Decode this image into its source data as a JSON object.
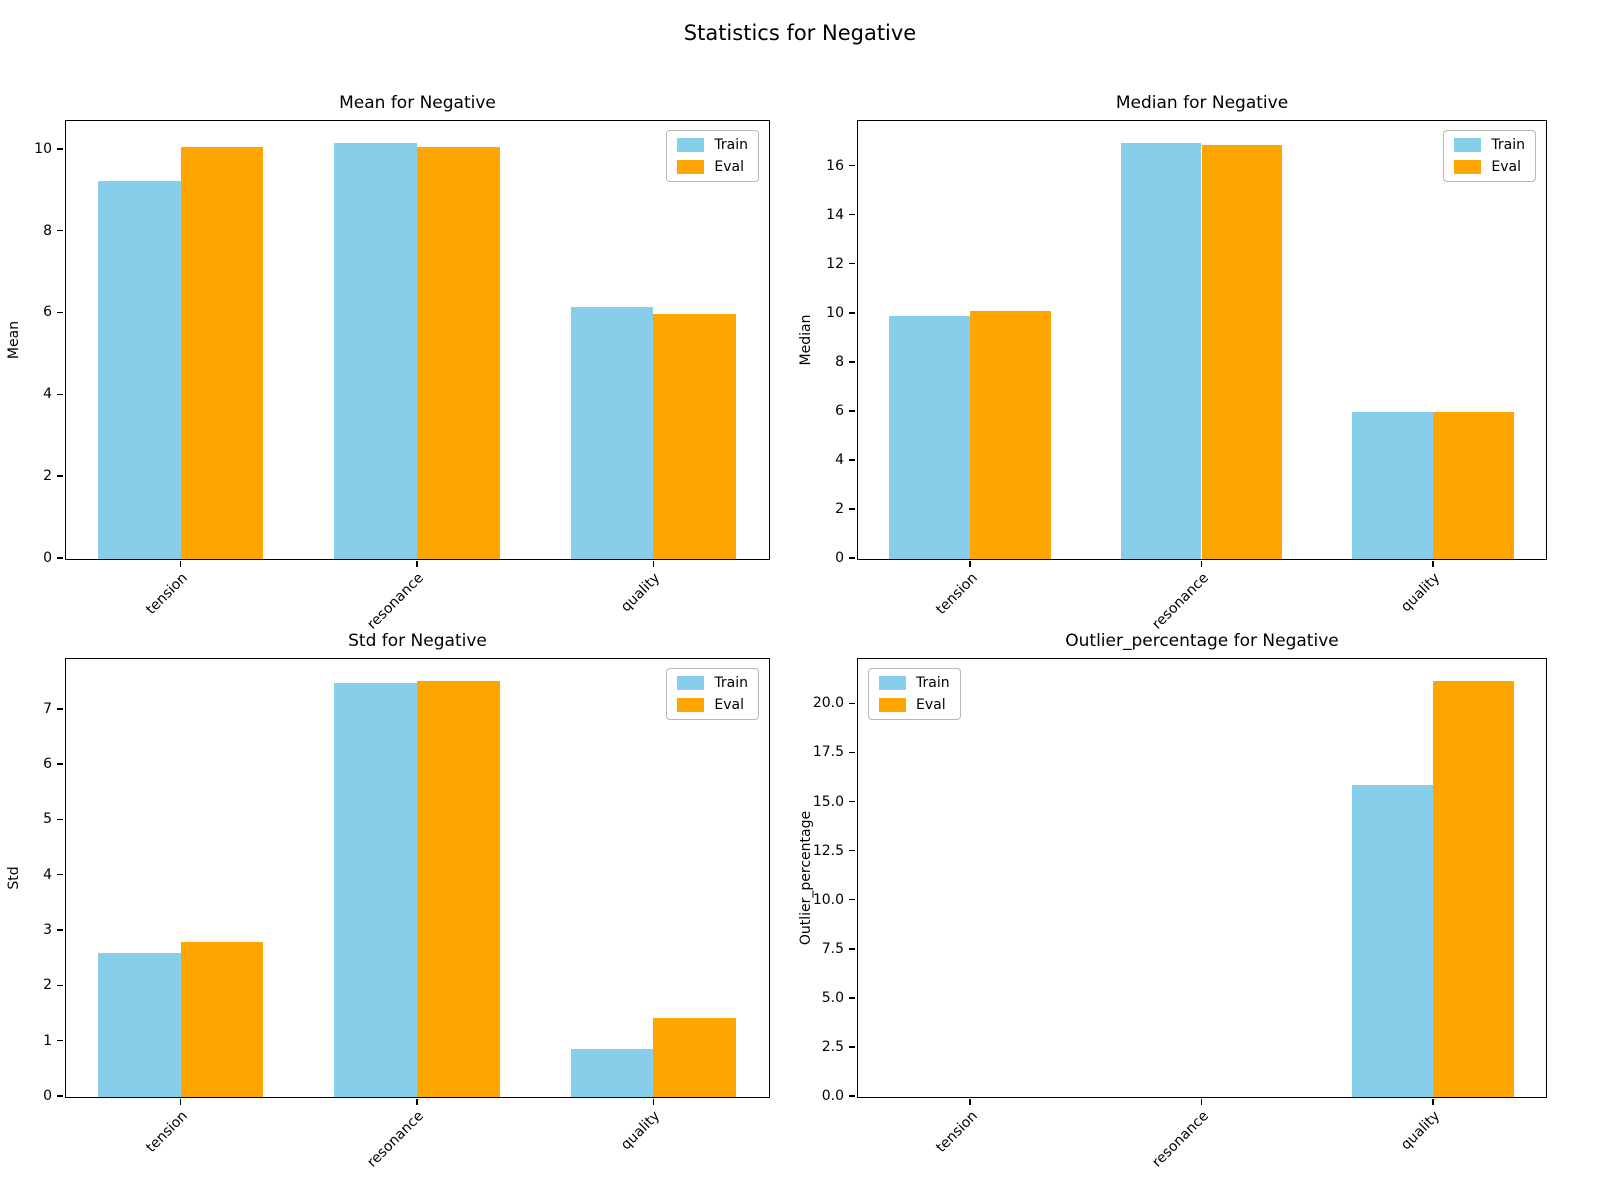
{
  "suptitle": "Statistics for Negative",
  "colors": {
    "train": "#87CEEB",
    "eval": "#FFA500",
    "spine": "#000000",
    "legend_border": "#b7b7b7"
  },
  "legend": {
    "train_label": "Train",
    "eval_label": "Eval"
  },
  "chart_data": [
    {
      "type": "bar",
      "title": "Mean for Negative",
      "ylabel": "Mean",
      "categories": [
        "tension",
        "resonance",
        "quality"
      ],
      "series": [
        {
          "name": "Train",
          "color": "#87CEEB",
          "values": [
            9.25,
            10.17,
            6.15
          ]
        },
        {
          "name": "Eval",
          "color": "#FFA500",
          "values": [
            10.06,
            10.08,
            5.98
          ]
        }
      ],
      "ylim": [
        0,
        10.68
      ],
      "yticks": [
        0,
        2,
        4,
        6,
        8,
        10
      ],
      "ytick_decimals": 0,
      "bar_width": 0.35,
      "grid": false,
      "legend_position": "upper-right"
    },
    {
      "type": "bar",
      "title": "Median for Negative",
      "ylabel": "Median",
      "categories": [
        "tension",
        "resonance",
        "quality"
      ],
      "series": [
        {
          "name": "Train",
          "color": "#87CEEB",
          "values": [
            9.9,
            16.95,
            6.0
          ]
        },
        {
          "name": "Eval",
          "color": "#FFA500",
          "values": [
            10.1,
            16.88,
            6.0
          ]
        }
      ],
      "ylim": [
        0,
        17.82
      ],
      "yticks": [
        0,
        2,
        4,
        6,
        8,
        10,
        12,
        14,
        16
      ],
      "ytick_decimals": 0,
      "bar_width": 0.35,
      "grid": false,
      "legend_position": "upper-right"
    },
    {
      "type": "bar",
      "title": "Std for Negative",
      "ylabel": "Std",
      "categories": [
        "tension",
        "resonance",
        "quality"
      ],
      "series": [
        {
          "name": "Train",
          "color": "#87CEEB",
          "values": [
            2.6,
            7.49,
            0.87
          ]
        },
        {
          "name": "Eval",
          "color": "#FFA500",
          "values": [
            2.8,
            7.52,
            1.42
          ]
        }
      ],
      "ylim": [
        0,
        7.9
      ],
      "yticks": [
        0,
        1,
        2,
        3,
        4,
        5,
        6,
        7
      ],
      "ytick_decimals": 0,
      "bar_width": 0.35,
      "grid": false,
      "legend_position": "upper-right"
    },
    {
      "type": "bar",
      "title": "Outlier_percentage for Negative",
      "ylabel": "Outlier_percentage",
      "categories": [
        "tension",
        "resonance",
        "quality"
      ],
      "series": [
        {
          "name": "Train",
          "color": "#87CEEB",
          "values": [
            0,
            0,
            15.9
          ]
        },
        {
          "name": "Eval",
          "color": "#FFA500",
          "values": [
            0,
            0,
            21.2
          ]
        }
      ],
      "ylim": [
        0,
        22.26
      ],
      "yticks": [
        0,
        2.5,
        5,
        7.5,
        10,
        12.5,
        15,
        17.5,
        20
      ],
      "ytick_decimals": 1,
      "bar_width": 0.35,
      "grid": false,
      "legend_position": "upper-left"
    }
  ]
}
